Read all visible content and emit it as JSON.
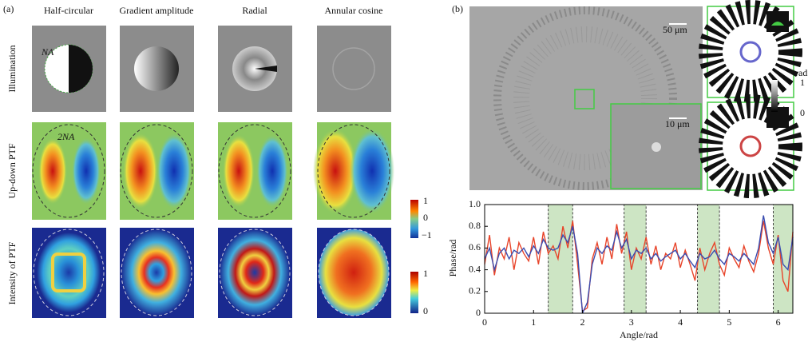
{
  "panel_a": {
    "label": "(a)",
    "columns": [
      "Half-circular",
      "Gradient amplitude",
      "Radial",
      "Annular cosine"
    ],
    "rows": [
      "Illumination",
      "Up-down PTF",
      "Intensity of PTF"
    ],
    "annotations": [
      "NA",
      "2NA"
    ],
    "colorbar_ptf": [
      "1",
      "0",
      "−1"
    ],
    "colorbar_intensity": [
      "1",
      "0"
    ]
  },
  "panel_b": {
    "label": "(b)",
    "scale_bars": [
      "50 μm",
      "10 μm"
    ],
    "colorbar": [
      "rad",
      "1",
      "0"
    ]
  },
  "chart_data": {
    "type": "line",
    "xlabel": "Angle/rad",
    "ylabel": "Phase/rad",
    "xlim": [
      0,
      6.3
    ],
    "ylim": [
      0,
      1
    ],
    "xticks": [
      0,
      1,
      2,
      3,
      4,
      5,
      6
    ],
    "yticks": [
      0,
      0.2,
      0.4,
      0.6,
      0.8,
      {
        "value": 1,
        "label": "1.0"
      }
    ],
    "highlight_regions": [
      [
        1.3,
        1.8
      ],
      [
        2.85,
        3.3
      ],
      [
        4.35,
        4.8
      ],
      [
        5.9,
        6.3
      ]
    ],
    "x": [
      0,
      0.1,
      0.2,
      0.3,
      0.4,
      0.5,
      0.6,
      0.7,
      0.8,
      0.9,
      1,
      1.1,
      1.2,
      1.3,
      1.4,
      1.5,
      1.6,
      1.7,
      1.8,
      1.9,
      2,
      2.1,
      2.2,
      2.3,
      2.4,
      2.5,
      2.6,
      2.7,
      2.8,
      2.9,
      3,
      3.1,
      3.2,
      3.3,
      3.4,
      3.5,
      3.6,
      3.7,
      3.8,
      3.9,
      4,
      4.1,
      4.2,
      4.3,
      4.4,
      4.5,
      4.6,
      4.7,
      4.8,
      4.9,
      5,
      5.1,
      5.2,
      5.3,
      5.4,
      5.5,
      5.6,
      5.7,
      5.8,
      5.9,
      6,
      6.1,
      6.2,
      6.3
    ],
    "series": [
      {
        "color": "#e8442a",
        "values": [
          0.45,
          0.72,
          0.35,
          0.6,
          0.5,
          0.7,
          0.4,
          0.65,
          0.55,
          0.48,
          0.7,
          0.45,
          0.75,
          0.55,
          0.62,
          0.5,
          0.8,
          0.6,
          0.85,
          0.45,
          0.02,
          0.05,
          0.5,
          0.65,
          0.45,
          0.7,
          0.5,
          0.82,
          0.55,
          0.75,
          0.4,
          0.6,
          0.5,
          0.7,
          0.45,
          0.62,
          0.4,
          0.55,
          0.5,
          0.65,
          0.42,
          0.58,
          0.45,
          0.3,
          0.6,
          0.4,
          0.55,
          0.65,
          0.45,
          0.35,
          0.6,
          0.5,
          0.42,
          0.62,
          0.48,
          0.38,
          0.55,
          0.85,
          0.6,
          0.45,
          0.72,
          0.3,
          0.2,
          0.75
        ]
      },
      {
        "color": "#3b4db0",
        "values": [
          0.5,
          0.6,
          0.4,
          0.55,
          0.6,
          0.5,
          0.58,
          0.55,
          0.6,
          0.52,
          0.62,
          0.55,
          0.68,
          0.6,
          0.58,
          0.6,
          0.72,
          0.65,
          0.8,
          0.55,
          0.0,
          0.1,
          0.45,
          0.6,
          0.55,
          0.62,
          0.58,
          0.75,
          0.6,
          0.68,
          0.5,
          0.58,
          0.55,
          0.6,
          0.5,
          0.55,
          0.48,
          0.52,
          0.55,
          0.58,
          0.5,
          0.55,
          0.48,
          0.42,
          0.55,
          0.5,
          0.52,
          0.58,
          0.5,
          0.45,
          0.55,
          0.52,
          0.48,
          0.55,
          0.5,
          0.45,
          0.6,
          0.9,
          0.65,
          0.55,
          0.7,
          0.45,
          0.4,
          0.7
        ]
      }
    ]
  }
}
